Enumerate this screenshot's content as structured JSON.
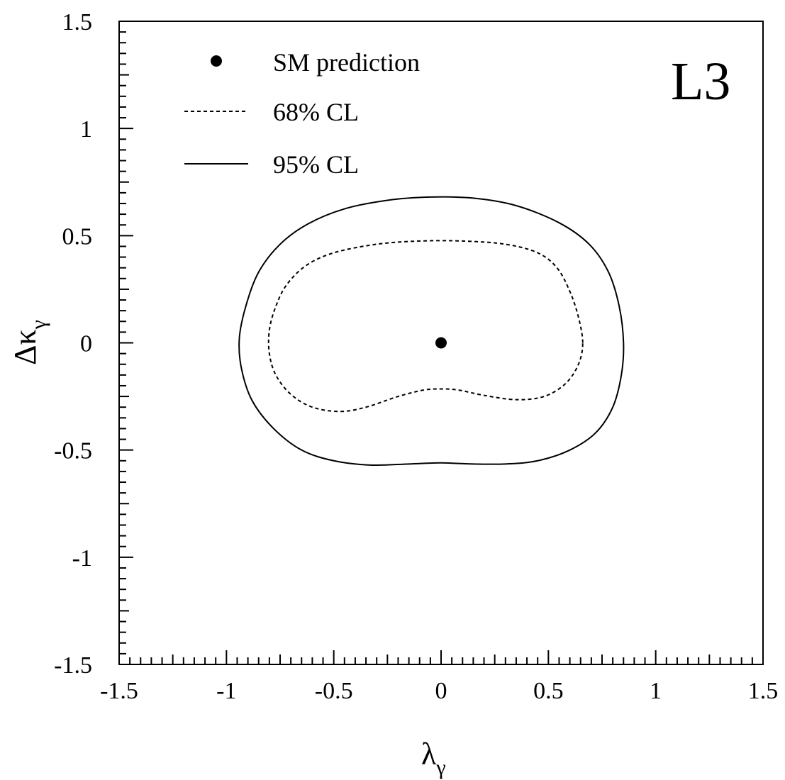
{
  "chart_data": {
    "type": "line",
    "experiment_label": "L3",
    "xlabel": {
      "symbol": "λ",
      "subscript": "γ"
    },
    "ylabel": {
      "symbol": "Δκ",
      "subscript": "γ"
    },
    "xlim": [
      -1.5,
      1.5
    ],
    "ylim": [
      -1.5,
      1.5
    ],
    "x_ticks": [
      "-1.5",
      "-1",
      "-0.5",
      "0",
      "0.5",
      "1",
      "1.5"
    ],
    "y_ticks": [
      "-1.5",
      "-1",
      "-0.5",
      "0",
      "0.5",
      "1",
      "1.5"
    ],
    "grid": false,
    "legend_position": "top-left",
    "legend": [
      {
        "label": "SM prediction",
        "style": "dot"
      },
      {
        "label": "68% CL",
        "style": "dashed"
      },
      {
        "label": "95% CL",
        "style": "solid"
      }
    ],
    "sm_point": {
      "x": 0,
      "y": 0
    },
    "series": [
      {
        "name": "68% CL",
        "style": "dashed",
        "points": [
          [
            0.66,
            0.0
          ],
          [
            0.64,
            0.12
          ],
          [
            0.6,
            0.24
          ],
          [
            0.54,
            0.35
          ],
          [
            0.45,
            0.42
          ],
          [
            0.3,
            0.46
          ],
          [
            0.1,
            0.475
          ],
          [
            -0.1,
            0.475
          ],
          [
            -0.3,
            0.46
          ],
          [
            -0.5,
            0.42
          ],
          [
            -0.63,
            0.36
          ],
          [
            -0.72,
            0.27
          ],
          [
            -0.77,
            0.17
          ],
          [
            -0.8,
            0.06
          ],
          [
            -0.8,
            -0.05
          ],
          [
            -0.77,
            -0.15
          ],
          [
            -0.7,
            -0.24
          ],
          [
            -0.6,
            -0.3
          ],
          [
            -0.47,
            -0.32
          ],
          [
            -0.35,
            -0.3
          ],
          [
            -0.2,
            -0.25
          ],
          [
            -0.08,
            -0.22
          ],
          [
            0.0,
            -0.215
          ],
          [
            0.08,
            -0.22
          ],
          [
            0.2,
            -0.245
          ],
          [
            0.35,
            -0.265
          ],
          [
            0.48,
            -0.25
          ],
          [
            0.58,
            -0.19
          ],
          [
            0.64,
            -0.1
          ],
          [
            0.66,
            0.0
          ]
        ]
      },
      {
        "name": "95% CL",
        "style": "solid",
        "points": [
          [
            0.85,
            0.0
          ],
          [
            0.83,
            0.17
          ],
          [
            0.78,
            0.33
          ],
          [
            0.69,
            0.46
          ],
          [
            0.55,
            0.56
          ],
          [
            0.35,
            0.64
          ],
          [
            0.15,
            0.675
          ],
          [
            -0.05,
            0.68
          ],
          [
            -0.25,
            0.665
          ],
          [
            -0.45,
            0.625
          ],
          [
            -0.62,
            0.555
          ],
          [
            -0.75,
            0.46
          ],
          [
            -0.85,
            0.33
          ],
          [
            -0.91,
            0.17
          ],
          [
            -0.94,
            0.02
          ],
          [
            -0.93,
            -0.12
          ],
          [
            -0.88,
            -0.27
          ],
          [
            -0.78,
            -0.4
          ],
          [
            -0.65,
            -0.5
          ],
          [
            -0.5,
            -0.55
          ],
          [
            -0.33,
            -0.57
          ],
          [
            -0.15,
            -0.565
          ],
          [
            0.0,
            -0.56
          ],
          [
            0.15,
            -0.565
          ],
          [
            0.3,
            -0.565
          ],
          [
            0.45,
            -0.55
          ],
          [
            0.6,
            -0.5
          ],
          [
            0.72,
            -0.42
          ],
          [
            0.8,
            -0.3
          ],
          [
            0.84,
            -0.15
          ],
          [
            0.85,
            0.0
          ]
        ]
      }
    ]
  }
}
